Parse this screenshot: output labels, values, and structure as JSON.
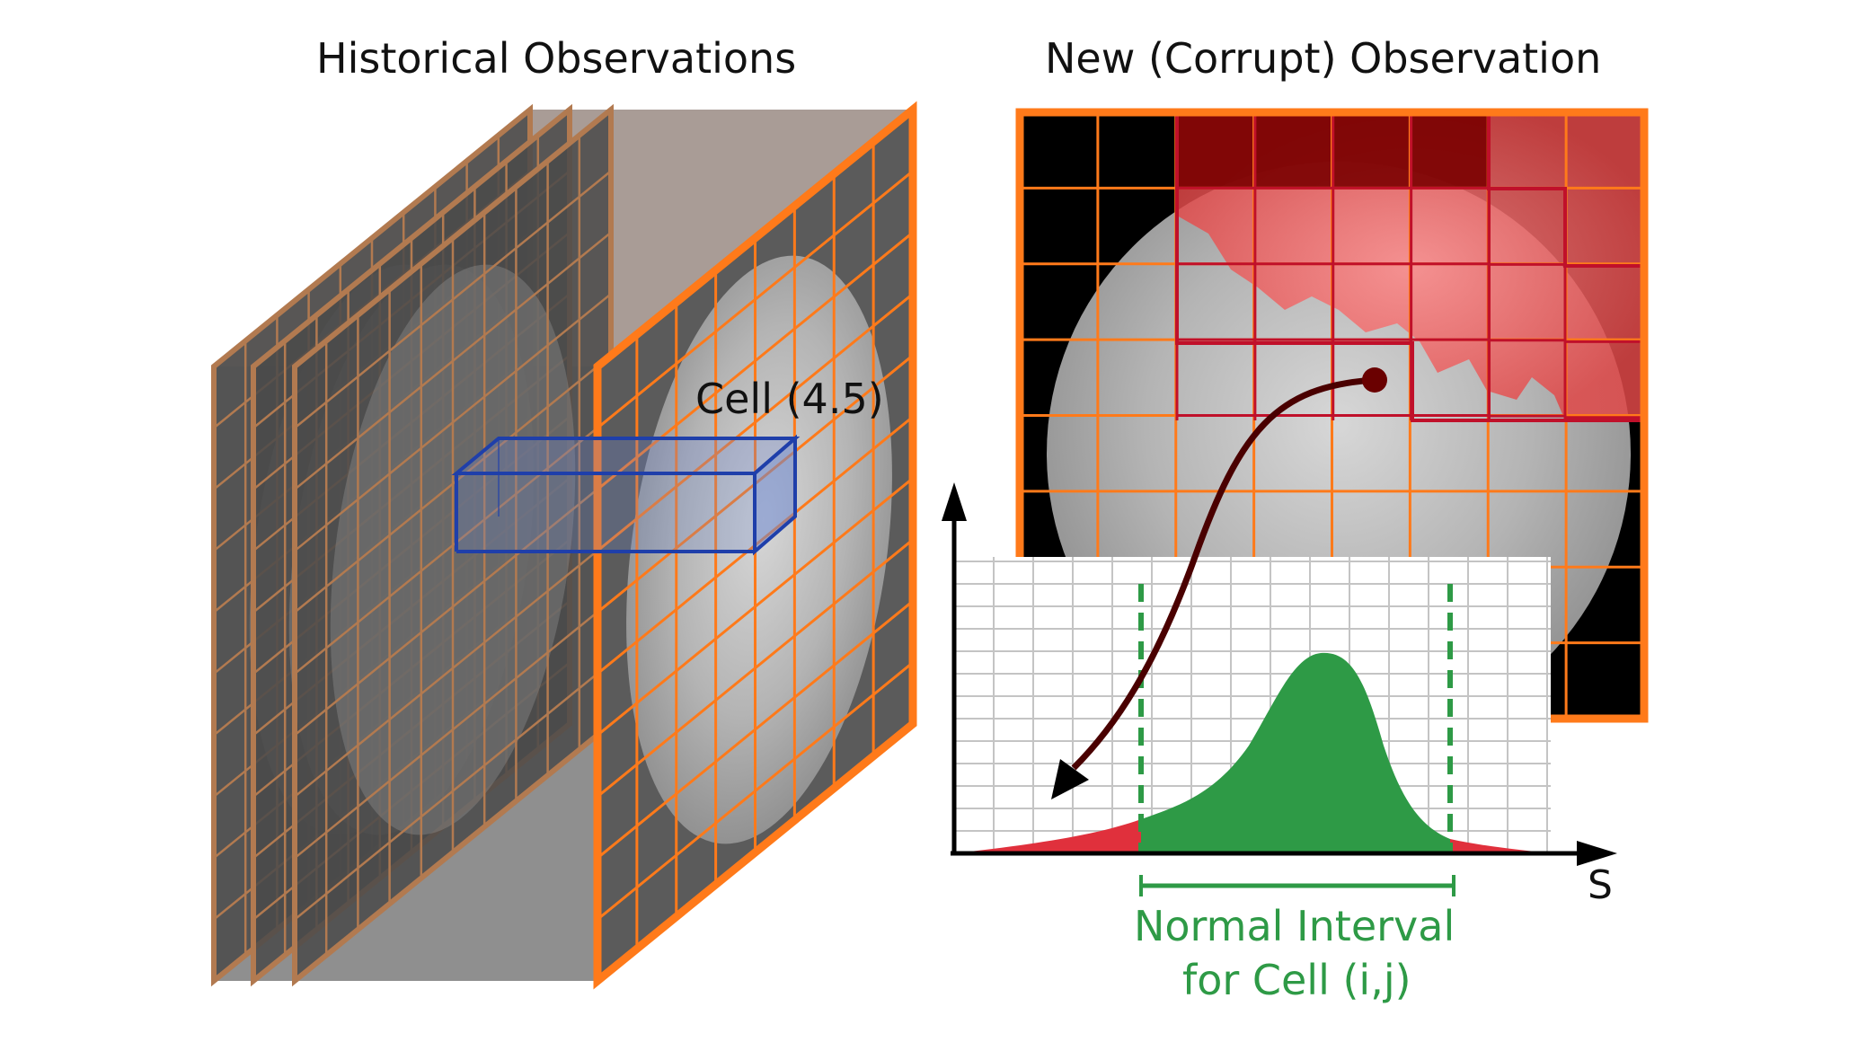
{
  "titles": {
    "left": "Historical Observations",
    "right": "New (Corrupt) Observation"
  },
  "labels": {
    "cell": "Cell (4.5)",
    "axis_x": "S",
    "normal_interval_line1": "Normal Interval",
    "normal_interval_line2": "for Cell (i,j)"
  },
  "colors": {
    "grid_orange": "#ff7a1a",
    "grid_faded": "#b27a50",
    "highlight_blue": "#1f3faa",
    "corrupt_red": "#c0102a",
    "normal_green": "#2e9a46",
    "tail_red": "#e0303c",
    "arrow_dark": "#4a0000"
  }
}
